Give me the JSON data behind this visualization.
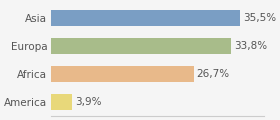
{
  "categories": [
    "Asia",
    "Europa",
    "Africa",
    "America"
  ],
  "values": [
    35.5,
    33.8,
    26.7,
    3.9
  ],
  "labels": [
    "35,5%",
    "33,8%",
    "26,7%",
    "3,9%"
  ],
  "bar_colors": [
    "#7a9ec4",
    "#a8bc8a",
    "#e8b98a",
    "#e8d87a"
  ],
  "background_color": "#f5f5f5",
  "xlim": [
    0,
    40
  ],
  "label_fontsize": 7.5,
  "tick_fontsize": 7.5
}
